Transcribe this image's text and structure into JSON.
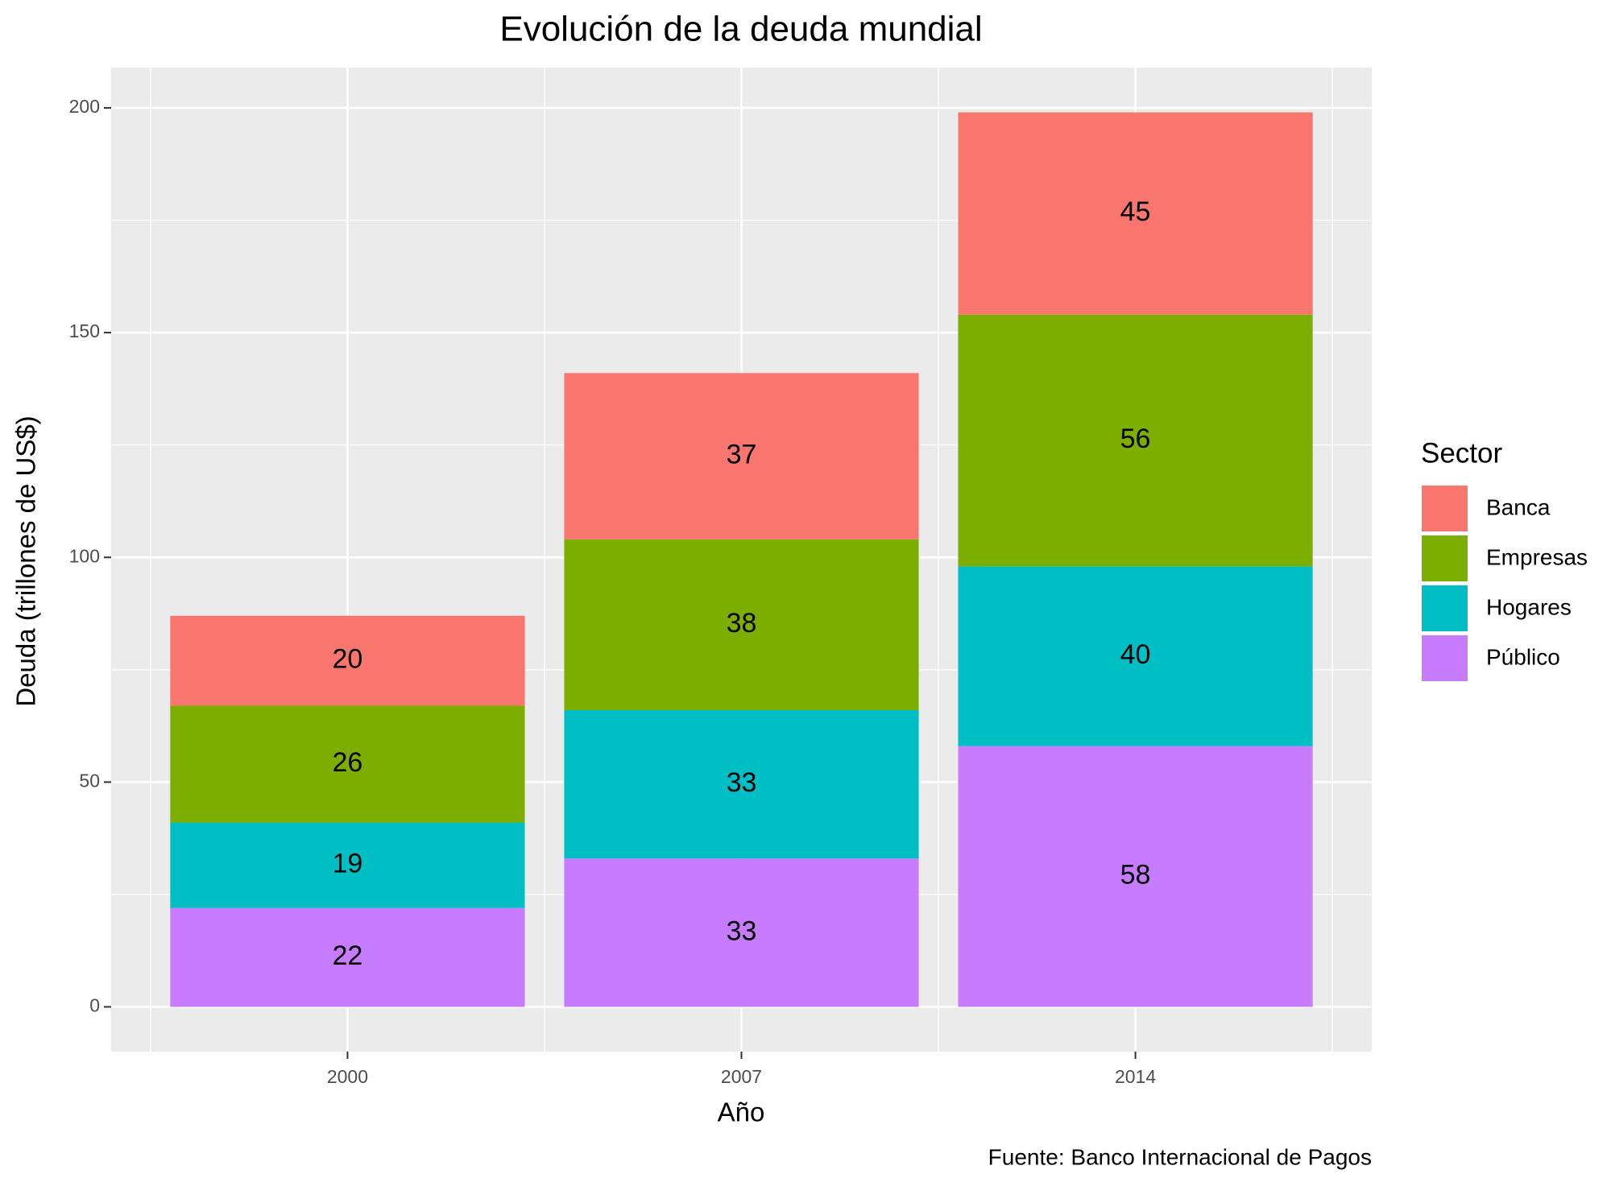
{
  "chart_data": {
    "type": "stacked_bar",
    "title": "Evolución de la deuda mundial",
    "x_label": "Año",
    "y_label": "Deuda (trillones de US$)",
    "caption": "Fuente: Banco Internacional de Pagos",
    "legend_title": "Sector",
    "legend_position": "right",
    "grid": true,
    "categories": [
      "2000",
      "2007",
      "2014"
    ],
    "series": [
      {
        "name": "Banca",
        "color": "#F8766D",
        "values": [
          20,
          37,
          45
        ]
      },
      {
        "name": "Empresas",
        "color": "#7CAE00",
        "values": [
          26,
          38,
          56
        ]
      },
      {
        "name": "Hogares",
        "color": "#00BFC4",
        "values": [
          19,
          33,
          40
        ]
      },
      {
        "name": "Público",
        "color": "#C77CFF",
        "values": [
          22,
          33,
          58
        ]
      }
    ],
    "ylim": [
      -9.95,
      208.95
    ],
    "yticks": [
      0,
      50,
      100,
      150,
      200
    ]
  }
}
